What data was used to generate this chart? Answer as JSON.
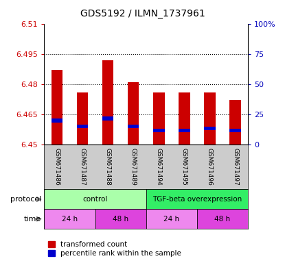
{
  "title": "GDS5192 / ILMN_1737961",
  "samples": [
    "GSM671486",
    "GSM671487",
    "GSM671488",
    "GSM671489",
    "GSM671494",
    "GSM671495",
    "GSM671496",
    "GSM671497"
  ],
  "bar_tops": [
    6.487,
    6.476,
    6.492,
    6.481,
    6.476,
    6.476,
    6.476,
    6.472
  ],
  "bar_bottoms": [
    6.45,
    6.45,
    6.45,
    6.45,
    6.45,
    6.45,
    6.45,
    6.45
  ],
  "blue_positions": [
    6.462,
    6.459,
    6.463,
    6.459,
    6.457,
    6.457,
    6.458,
    6.457
  ],
  "ylim": [
    6.45,
    6.51
  ],
  "yticks": [
    6.45,
    6.465,
    6.48,
    6.495,
    6.51
  ],
  "right_yticks": [
    0,
    25,
    50,
    75,
    100
  ],
  "dotted_lines": [
    6.465,
    6.48,
    6.495
  ],
  "bar_color": "#cc0000",
  "blue_color": "#0000cc",
  "bar_width": 0.45,
  "protocol_regions": [
    {
      "xstart": -0.5,
      "xend": 3.5,
      "color": "#aaffaa",
      "label": "control"
    },
    {
      "xstart": 3.5,
      "xend": 7.5,
      "color": "#33ee66",
      "label": "TGF-beta overexpression"
    }
  ],
  "time_regions": [
    {
      "xstart": -0.5,
      "xend": 1.5,
      "color": "#ee88ee",
      "label": "24 h"
    },
    {
      "xstart": 1.5,
      "xend": 3.5,
      "color": "#dd44dd",
      "label": "48 h"
    },
    {
      "xstart": 3.5,
      "xend": 5.5,
      "color": "#ee88ee",
      "label": "24 h"
    },
    {
      "xstart": 5.5,
      "xend": 7.5,
      "color": "#dd44dd",
      "label": "48 h"
    }
  ],
  "legend_red": "transformed count",
  "legend_blue": "percentile rank within the sample",
  "xlabel_color": "#cc0000",
  "right_axis_color": "#0000bb",
  "label_bg_color": "#cccccc",
  "title_fontsize": 10
}
